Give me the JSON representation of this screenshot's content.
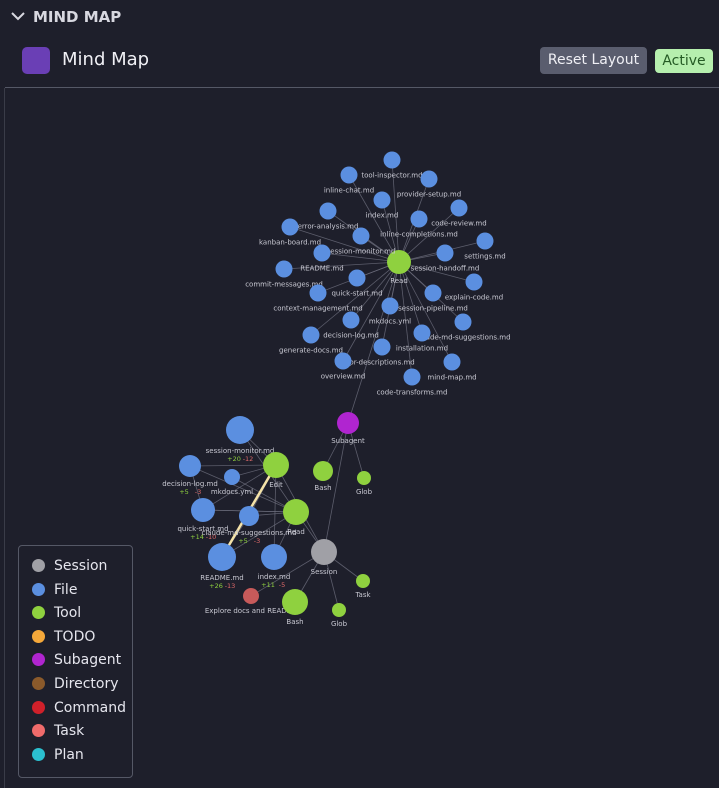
{
  "header": {
    "section": "MIND MAP",
    "title": "Mind Map",
    "buttons": [
      "Reset Layout",
      "Active"
    ]
  },
  "nodes": [
    {
      "label": "Read"
    },
    {
      "label": "tool-inspector.md"
    },
    {
      "label": "inline-chat.md"
    },
    {
      "label": "provider-setup.md"
    },
    {
      "label": "index.md"
    },
    {
      "label": "code-review.md"
    },
    {
      "label": "error-analysis.md"
    },
    {
      "label": "inline-completions.md"
    },
    {
      "label": "kanban-board.md"
    },
    {
      "label": "session-monitor.md"
    },
    {
      "label": "settings.md"
    },
    {
      "label": "README.md"
    },
    {
      "label": "session-handoff.md"
    },
    {
      "label": "commit-messages.md"
    },
    {
      "label": "quick-start.md"
    },
    {
      "label": "explain-code.md"
    },
    {
      "label": "context-management.md"
    },
    {
      "label": "session-pipeline.md"
    },
    {
      "label": "mkdocs.yml"
    },
    {
      "label": "decision-log.md"
    },
    {
      "label": "claude-md-suggestions.md"
    },
    {
      "label": "generate-docs.md"
    },
    {
      "label": "installation.md"
    },
    {
      "label": "pr-descriptions.md"
    },
    {
      "label": "overview.md"
    },
    {
      "label": "mind-map.md"
    },
    {
      "label": "code-transforms.md"
    },
    {
      "label": "Subagent"
    },
    {
      "label": "Bash"
    },
    {
      "label": "Glob"
    },
    {
      "label": "session-monitor.md",
      "added": "+20",
      "removed": "-12"
    },
    {
      "label": "decision-log.md",
      "added": "+5",
      "removed": "-3"
    },
    {
      "label": "mkdocs.yml"
    },
    {
      "label": "Edit"
    },
    {
      "label": "quick-start.md",
      "added": "+14",
      "removed": "-10"
    },
    {
      "label": "claude-md-suggestions.md",
      "added": "+5",
      "removed": "-3"
    },
    {
      "label": "Read"
    },
    {
      "label": "README.md",
      "added": "+26",
      "removed": "-13"
    },
    {
      "label": "index.md",
      "added": "+11",
      "removed": "-5"
    },
    {
      "label": "Session"
    },
    {
      "label": "Explore docs and README"
    },
    {
      "label": "Bash"
    },
    {
      "label": "Task"
    },
    {
      "label": "Glob"
    }
  ],
  "legend": [
    "Session",
    "File",
    "Tool",
    "TODO",
    "Subagent",
    "Directory",
    "Command",
    "Task",
    "Plan"
  ]
}
